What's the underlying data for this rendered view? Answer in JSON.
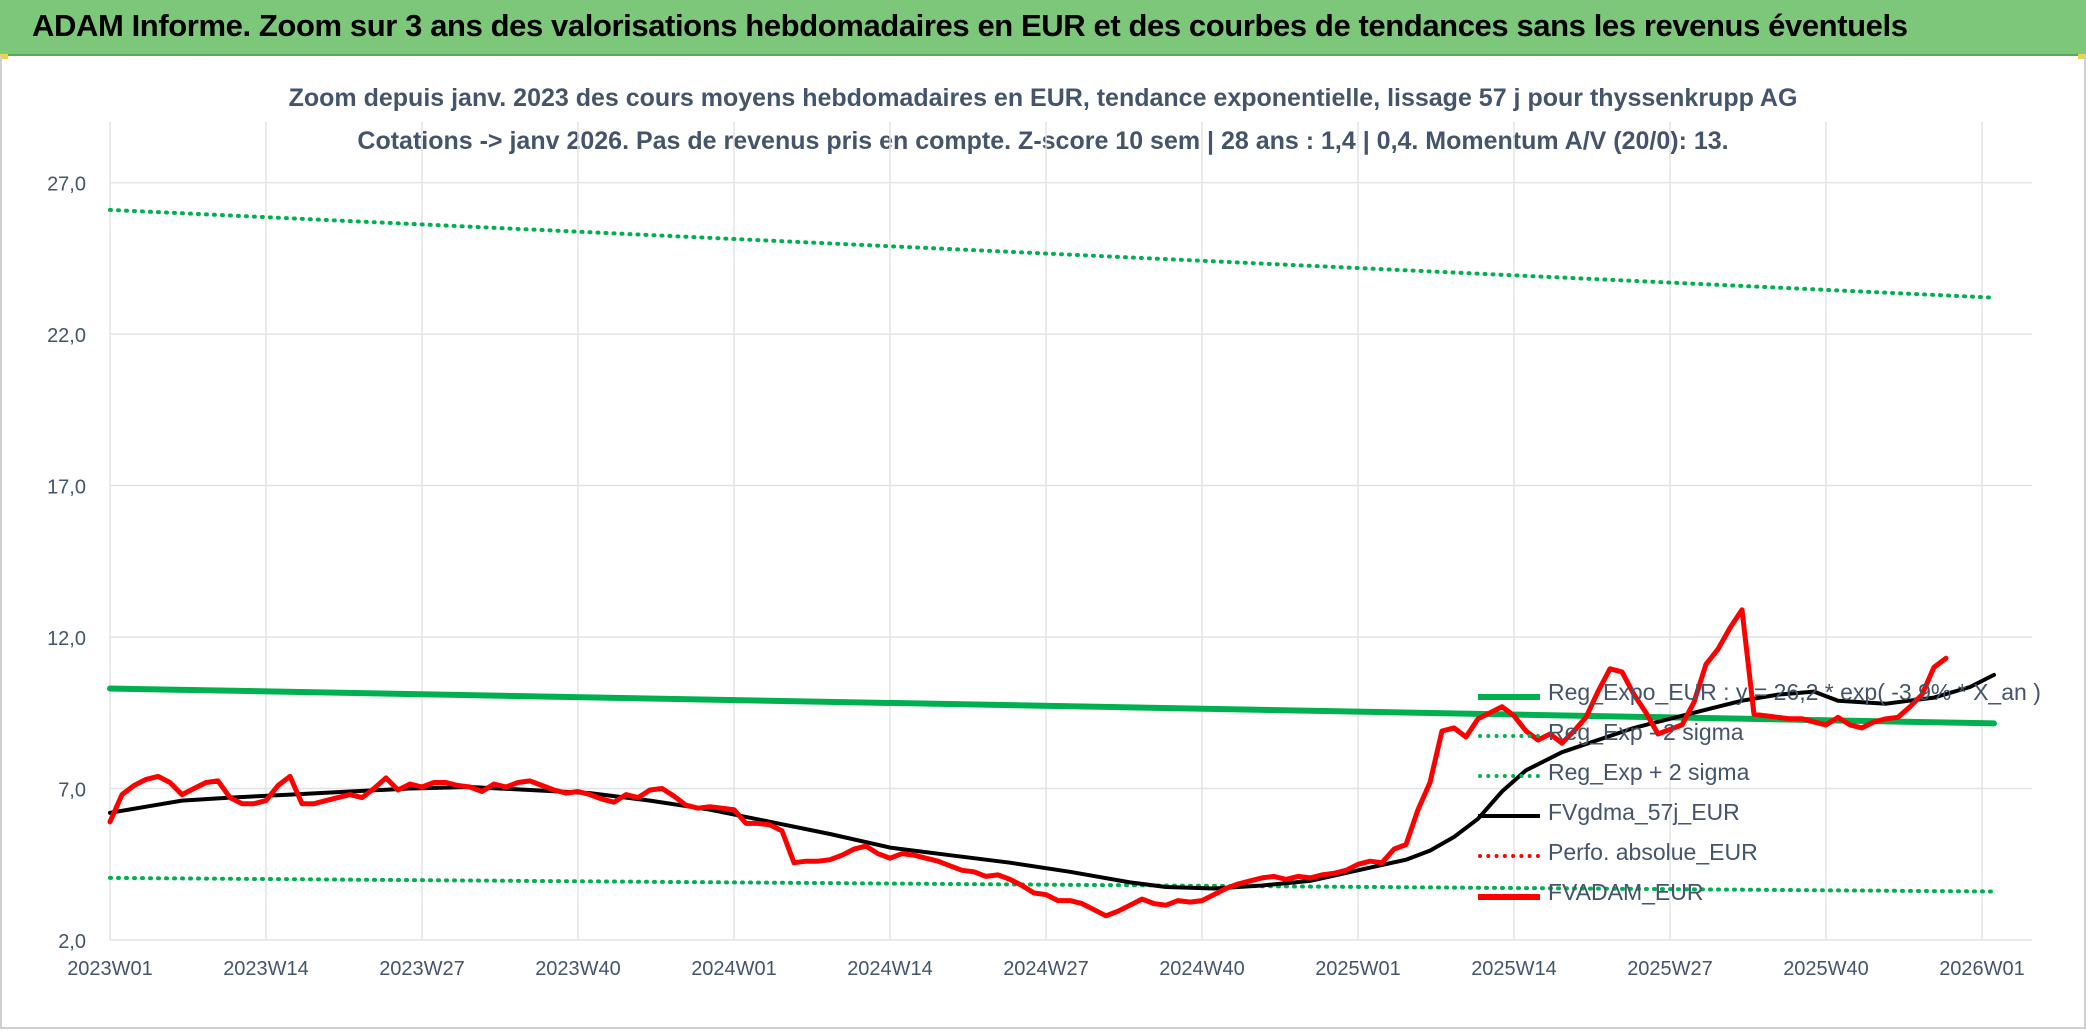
{
  "header": {
    "title": "ADAM Informe. Zoom sur 3 ans des valorisations hebdomadaires en EUR et des courbes de tendances sans les revenus éventuels"
  },
  "colors": {
    "header_bg": "#7cc77a",
    "title_text": "#44546a",
    "reg_green": "#00b050",
    "fvgdma": "#000000",
    "fvadam": "#ff0000",
    "grid": "#e3e3e3"
  },
  "chart_data": {
    "type": "line",
    "title": "Zoom depuis janv. 2023 des cours moyens hebdomadaires en EUR, tendance exponentielle, lissage 57 j pour thyssenkrupp AG",
    "subtitle": "Cotations -> janv 2026. Pas de revenus pris en compte. Z-score 10 sem | 28 ans : 1,4 | 0,4. Momentum A/V (20/0): 13.",
    "xlabel": "",
    "ylabel": "",
    "ylim": [
      2.0,
      29.0
    ],
    "yticks": [
      "2,0",
      "7,0",
      "12,0",
      "17,0",
      "22,0",
      "27,0"
    ],
    "x_tick_labels": [
      "2023W01",
      "2023W14",
      "2023W27",
      "2023W40",
      "2024W01",
      "2024W14",
      "2024W27",
      "2024W40",
      "2025W01",
      "2025W14",
      "2025W27",
      "2025W40",
      "2026W01"
    ],
    "grid": true,
    "legend_position": "right",
    "series": [
      {
        "name": "Reg_Expo_EUR : y = 26,2 * exp( -3,9% *  X_an )",
        "style": "solid-thick",
        "color": "#00b050",
        "values": [
          [
            0,
            10.3
          ],
          [
            157,
            9.15
          ]
        ]
      },
      {
        "name": "Reg_Exp - 2 sigma",
        "style": "dotted",
        "color": "#00b050",
        "values": [
          [
            0,
            4.05
          ],
          [
            157,
            3.6
          ]
        ]
      },
      {
        "name": "Reg_Exp + 2 sigma",
        "style": "dotted",
        "color": "#00b050",
        "values": [
          [
            0,
            26.1
          ],
          [
            157,
            23.2
          ]
        ]
      },
      {
        "name": "FVgdma_57j_EUR",
        "style": "solid",
        "color": "#000000",
        "values": [
          [
            0,
            6.2
          ],
          [
            3,
            6.4
          ],
          [
            6,
            6.6
          ],
          [
            10,
            6.7
          ],
          [
            15,
            6.8
          ],
          [
            20,
            6.9
          ],
          [
            25,
            7.0
          ],
          [
            30,
            7.05
          ],
          [
            35,
            6.95
          ],
          [
            40,
            6.85
          ],
          [
            45,
            6.6
          ],
          [
            50,
            6.3
          ],
          [
            55,
            5.9
          ],
          [
            60,
            5.5
          ],
          [
            65,
            5.05
          ],
          [
            70,
            4.8
          ],
          [
            75,
            4.55
          ],
          [
            80,
            4.25
          ],
          [
            85,
            3.9
          ],
          [
            88,
            3.75
          ],
          [
            92,
            3.7
          ],
          [
            96,
            3.8
          ],
          [
            100,
            3.95
          ],
          [
            104,
            4.3
          ],
          [
            108,
            4.65
          ],
          [
            110,
            4.95
          ],
          [
            112,
            5.4
          ],
          [
            114,
            6.0
          ],
          [
            116,
            6.9
          ],
          [
            118,
            7.6
          ],
          [
            121,
            8.2
          ],
          [
            124,
            8.6
          ],
          [
            127,
            9.0
          ],
          [
            130,
            9.3
          ],
          [
            133,
            9.6
          ],
          [
            136,
            9.9
          ],
          [
            139,
            10.1
          ],
          [
            142,
            10.2
          ],
          [
            144,
            9.9
          ],
          [
            148,
            9.8
          ],
          [
            152,
            10.0
          ],
          [
            155,
            10.35
          ],
          [
            157,
            10.75
          ]
        ]
      },
      {
        "name": "Perfo. absolue_EUR",
        "style": "dotted",
        "color": "#ff0000",
        "values": []
      },
      {
        "name": "FVADAM_EUR",
        "style": "solid-thick",
        "color": "#ff0000",
        "values": [
          [
            0,
            5.9
          ],
          [
            1,
            6.8
          ],
          [
            2,
            7.1
          ],
          [
            3,
            7.3
          ],
          [
            4,
            7.4
          ],
          [
            5,
            7.2
          ],
          [
            6,
            6.8
          ],
          [
            7,
            7.0
          ],
          [
            8,
            7.2
          ],
          [
            9,
            7.25
          ],
          [
            10,
            6.7
          ],
          [
            11,
            6.5
          ],
          [
            12,
            6.5
          ],
          [
            13,
            6.6
          ],
          [
            14,
            7.1
          ],
          [
            15,
            7.4
          ],
          [
            16,
            6.5
          ],
          [
            17,
            6.5
          ],
          [
            18,
            6.6
          ],
          [
            19,
            6.7
          ],
          [
            20,
            6.8
          ],
          [
            21,
            6.7
          ],
          [
            22,
            7.0
          ],
          [
            23,
            7.35
          ],
          [
            24,
            6.95
          ],
          [
            25,
            7.15
          ],
          [
            26,
            7.05
          ],
          [
            27,
            7.2
          ],
          [
            28,
            7.2
          ],
          [
            29,
            7.1
          ],
          [
            30,
            7.05
          ],
          [
            31,
            6.9
          ],
          [
            32,
            7.15
          ],
          [
            33,
            7.05
          ],
          [
            34,
            7.2
          ],
          [
            35,
            7.25
          ],
          [
            36,
            7.1
          ],
          [
            37,
            6.95
          ],
          [
            38,
            6.85
          ],
          [
            39,
            6.9
          ],
          [
            40,
            6.8
          ],
          [
            41,
            6.65
          ],
          [
            42,
            6.55
          ],
          [
            43,
            6.8
          ],
          [
            44,
            6.7
          ],
          [
            45,
            6.95
          ],
          [
            46,
            7.0
          ],
          [
            47,
            6.75
          ],
          [
            48,
            6.45
          ],
          [
            49,
            6.35
          ],
          [
            50,
            6.4
          ],
          [
            51,
            6.35
          ],
          [
            52,
            6.3
          ],
          [
            53,
            5.85
          ],
          [
            54,
            5.85
          ],
          [
            55,
            5.8
          ],
          [
            56,
            5.6
          ],
          [
            57,
            4.55
          ],
          [
            58,
            4.6
          ],
          [
            59,
            4.6
          ],
          [
            60,
            4.65
          ],
          [
            61,
            4.8
          ],
          [
            62,
            5.0
          ],
          [
            63,
            5.1
          ],
          [
            64,
            4.85
          ],
          [
            65,
            4.7
          ],
          [
            66,
            4.85
          ],
          [
            67,
            4.8
          ],
          [
            68,
            4.7
          ],
          [
            69,
            4.6
          ],
          [
            70,
            4.45
          ],
          [
            71,
            4.3
          ],
          [
            72,
            4.25
          ],
          [
            73,
            4.1
          ],
          [
            74,
            4.15
          ],
          [
            75,
            4.0
          ],
          [
            76,
            3.8
          ],
          [
            77,
            3.55
          ],
          [
            78,
            3.5
          ],
          [
            79,
            3.3
          ],
          [
            80,
            3.3
          ],
          [
            81,
            3.2
          ],
          [
            82,
            3.0
          ],
          [
            83,
            2.8
          ],
          [
            84,
            2.95
          ],
          [
            85,
            3.15
          ],
          [
            86,
            3.35
          ],
          [
            87,
            3.2
          ],
          [
            88,
            3.15
          ],
          [
            89,
            3.3
          ],
          [
            90,
            3.25
          ],
          [
            91,
            3.3
          ],
          [
            92,
            3.5
          ],
          [
            93,
            3.7
          ],
          [
            94,
            3.85
          ],
          [
            95,
            3.95
          ],
          [
            96,
            4.05
          ],
          [
            97,
            4.1
          ],
          [
            98,
            4.0
          ],
          [
            99,
            4.1
          ],
          [
            100,
            4.05
          ],
          [
            101,
            4.15
          ],
          [
            102,
            4.2
          ],
          [
            103,
            4.3
          ],
          [
            104,
            4.5
          ],
          [
            105,
            4.6
          ],
          [
            106,
            4.55
          ],
          [
            107,
            5.0
          ],
          [
            108,
            5.15
          ],
          [
            109,
            6.3
          ],
          [
            110,
            7.2
          ],
          [
            111,
            8.9
          ],
          [
            112,
            9.0
          ],
          [
            113,
            8.7
          ],
          [
            114,
            9.3
          ],
          [
            115,
            9.5
          ],
          [
            116,
            9.7
          ],
          [
            117,
            9.4
          ],
          [
            118,
            8.9
          ],
          [
            119,
            8.6
          ],
          [
            120,
            8.8
          ],
          [
            121,
            8.5
          ],
          [
            122,
            8.9
          ],
          [
            123,
            9.35
          ],
          [
            124,
            10.2
          ],
          [
            125,
            10.95
          ],
          [
            126,
            10.85
          ],
          [
            127,
            10.1
          ],
          [
            128,
            9.5
          ],
          [
            129,
            8.8
          ],
          [
            130,
            8.95
          ],
          [
            131,
            9.1
          ],
          [
            132,
            9.85
          ],
          [
            133,
            11.1
          ],
          [
            134,
            11.6
          ],
          [
            135,
            12.3
          ],
          [
            136,
            12.9
          ],
          [
            137,
            9.45
          ],
          [
            138,
            9.4
          ],
          [
            139,
            9.35
          ],
          [
            140,
            9.3
          ],
          [
            141,
            9.3
          ],
          [
            142,
            9.2
          ],
          [
            143,
            9.1
          ],
          [
            144,
            9.35
          ],
          [
            145,
            9.1
          ],
          [
            146,
            9.0
          ],
          [
            147,
            9.2
          ],
          [
            148,
            9.3
          ],
          [
            149,
            9.35
          ],
          [
            150,
            9.7
          ],
          [
            151,
            10.1
          ],
          [
            152,
            11.0
          ],
          [
            153,
            11.3
          ]
        ]
      }
    ]
  }
}
